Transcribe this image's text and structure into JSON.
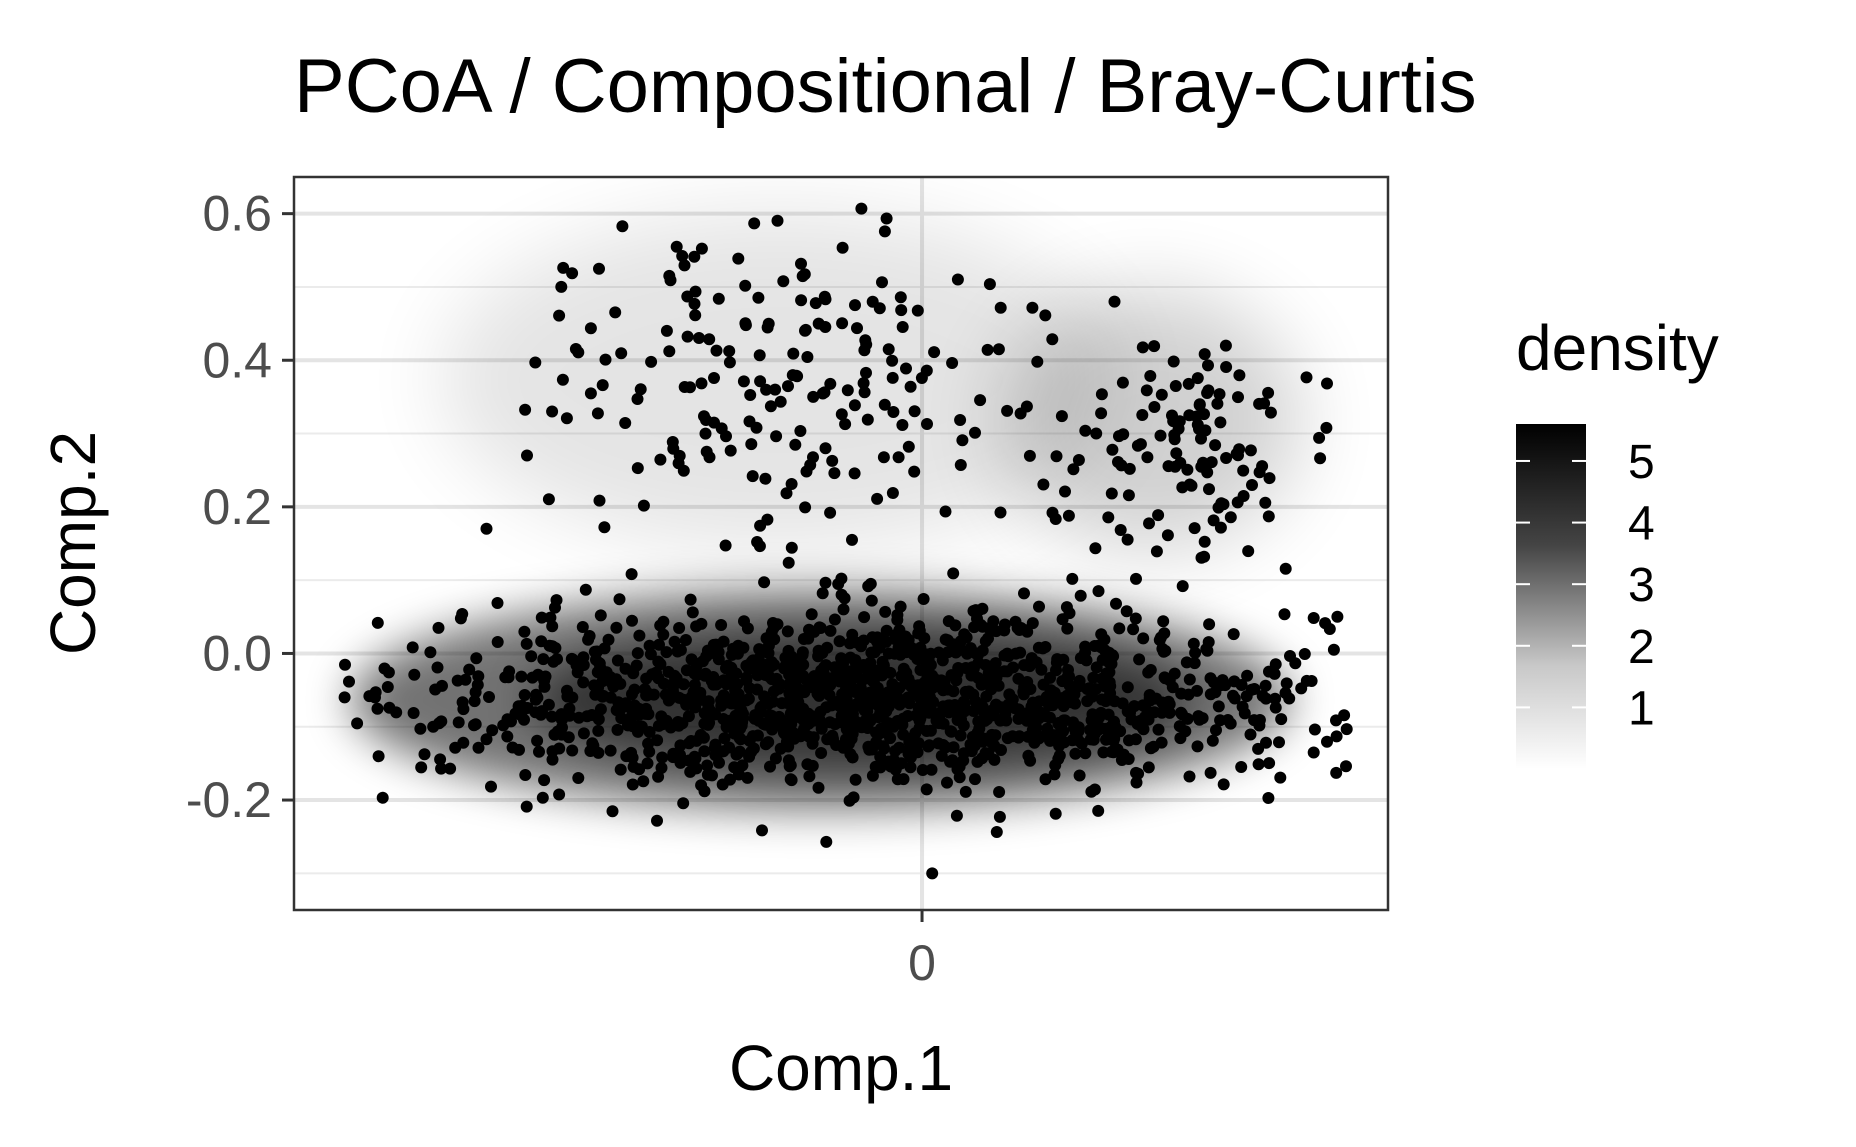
{
  "chart_data": {
    "type": "scatter",
    "title": "PCoA / Compositional / Bray-Curtis",
    "xlabel": "Comp.1",
    "ylabel": "Comp.2",
    "xlim": [
      -0.62,
      0.46
    ],
    "ylim": [
      -0.35,
      0.65
    ],
    "x_ticks": [
      0
    ],
    "x_tick_labels": [
      "0"
    ],
    "y_ticks": [
      -0.2,
      0.0,
      0.2,
      0.4,
      0.6
    ],
    "y_tick_labels": [
      "-0.2",
      "0.0",
      "0.2",
      "0.4",
      "0.6"
    ],
    "grid": true,
    "background": "density-shaded",
    "legend": {
      "title": "density",
      "position": "right",
      "range": [
        0,
        5.6
      ],
      "breaks": [
        1,
        2,
        3,
        4,
        5
      ],
      "break_labels": [
        "1",
        "2",
        "3",
        "4",
        "5"
      ],
      "low_color": "#ffffff",
      "high_color": "#000000"
    },
    "point_color": "#000000",
    "clusters": [
      {
        "name": "main-band",
        "center": [
          -0.05,
          -0.06
        ],
        "spread": [
          0.22,
          0.06
        ],
        "points": 1400,
        "range_x": [
          -0.57,
          0.42
        ],
        "range_y": [
          -0.26,
          0.12
        ]
      },
      {
        "name": "upper-right",
        "center": [
          0.26,
          0.27
        ],
        "spread": [
          0.08,
          0.08
        ],
        "points": 120,
        "range_x": [
          0.12,
          0.4
        ],
        "range_y": [
          0.1,
          0.42
        ]
      },
      {
        "name": "upper-left",
        "center": [
          -0.15,
          0.38
        ],
        "spread": [
          0.16,
          0.13
        ],
        "points": 200,
        "range_x": [
          -0.4,
          0.14
        ],
        "range_y": [
          0.12,
          0.61
        ]
      }
    ],
    "outliers": [
      [
        -0.57,
        -0.06
      ],
      [
        -0.54,
        -0.06
      ],
      [
        -0.43,
        0.17
      ],
      [
        -0.39,
        0.27
      ],
      [
        0.01,
        -0.3
      ],
      [
        0.19,
        0.48
      ],
      [
        0.3,
        0.42
      ],
      [
        0.41,
        0.05
      ]
    ]
  }
}
